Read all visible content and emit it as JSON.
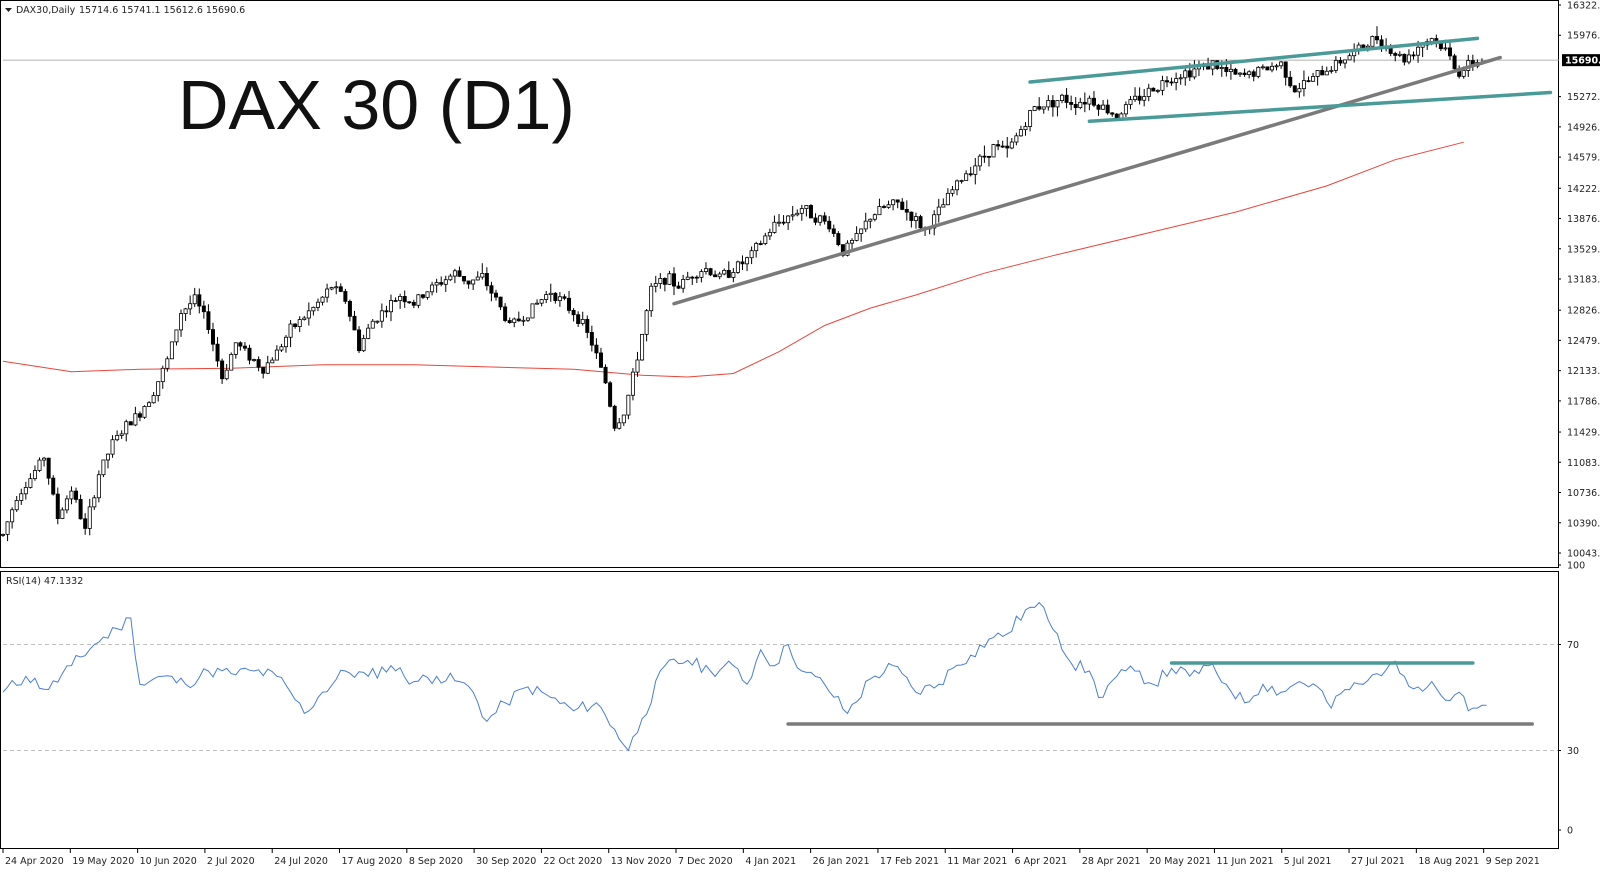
{
  "header": {
    "symbol_line": "DAX30,Daily",
    "ohlc_line": "15714.6 15741.1 15612.6 15690.6",
    "big_title": "DAX 30 (D1)",
    "rsi_label": "RSI(14) 47.1332"
  },
  "chart_data": [
    {
      "type": "candlestick",
      "title": "DAX 30 (D1)",
      "symbol": "DAX30",
      "timeframe": "Daily",
      "last_ohlc": {
        "open": 15714.6,
        "high": 15741.1,
        "low": 15612.6,
        "close": 15690.6
      },
      "current_price": 15690.6,
      "ylim": [
        10043.5,
        16322.5
      ],
      "y_ticks": [
        "16322.5",
        "15976.0",
        "15272.5",
        "14926.0",
        "14579.5",
        "14222.5",
        "13876.0",
        "13529.5",
        "13183.0",
        "12826.0",
        "12479.5",
        "12133.0",
        "11786.5",
        "11429.5",
        "11083.0",
        "10736.5",
        "10390.0",
        "10043.5"
      ],
      "x_ticks": [
        "24 Apr 2020",
        "19 May 2020",
        "10 Jun 2020",
        "2 Jul 2020",
        "24 Jul 2020",
        "17 Aug 2020",
        "8 Sep 2020",
        "30 Sep 2020",
        "22 Oct 2020",
        "13 Nov 2020",
        "7 Dec 2020",
        "4 Jan 2021",
        "26 Jan 2021",
        "17 Feb 2021",
        "11 Mar 2021",
        "6 Apr 2021",
        "28 Apr 2021",
        "20 May 2021",
        "11 Jun 2021",
        "5 Jul 2021",
        "27 Jul 2021",
        "18 Aug 2021",
        "9 Sep 2021"
      ],
      "price_path": [
        [
          0,
          10250
        ],
        [
          3,
          10700
        ],
        [
          6,
          10900
        ],
        [
          9,
          11150
        ],
        [
          12,
          10450
        ],
        [
          15,
          10780
        ],
        [
          18,
          10300
        ],
        [
          21,
          10950
        ],
        [
          24,
          11300
        ],
        [
          27,
          11500
        ],
        [
          30,
          11650
        ],
        [
          33,
          11900
        ],
        [
          36,
          12250
        ],
        [
          39,
          12800
        ],
        [
          42,
          12950
        ],
        [
          45,
          12650
        ],
        [
          48,
          12050
        ],
        [
          51,
          12450
        ],
        [
          54,
          12300
        ],
        [
          57,
          12150
        ],
        [
          60,
          12350
        ],
        [
          63,
          12600
        ],
        [
          66,
          12750
        ],
        [
          69,
          12900
        ],
        [
          72,
          13100
        ],
        [
          75,
          12950
        ],
        [
          78,
          12400
        ],
        [
          81,
          12700
        ],
        [
          84,
          12850
        ],
        [
          87,
          13000
        ],
        [
          90,
          12900
        ],
        [
          93,
          13050
        ],
        [
          96,
          13150
        ],
        [
          99,
          13250
        ],
        [
          102,
          13150
        ],
        [
          105,
          13200
        ],
        [
          108,
          12950
        ],
        [
          111,
          12650
        ],
        [
          114,
          12750
        ],
        [
          117,
          12900
        ],
        [
          120,
          13050
        ],
        [
          123,
          12900
        ],
        [
          126,
          12750
        ],
        [
          129,
          12450
        ],
        [
          132,
          12000
        ],
        [
          134,
          11500
        ],
        [
          136,
          11650
        ],
        [
          138,
          12050
        ],
        [
          140,
          12550
        ],
        [
          142,
          13050
        ],
        [
          145,
          13200
        ],
        [
          148,
          13100
        ],
        [
          151,
          13250
        ],
        [
          154,
          13300
        ],
        [
          157,
          13200
        ],
        [
          160,
          13300
        ],
        [
          163,
          13400
        ],
        [
          166,
          13600
        ],
        [
          169,
          13800
        ],
        [
          172,
          13900
        ],
        [
          175,
          14000
        ],
        [
          178,
          13900
        ],
        [
          181,
          13800
        ],
        [
          184,
          13500
        ],
        [
          187,
          13650
        ],
        [
          190,
          13900
        ],
        [
          193,
          14000
        ],
        [
          196,
          14050
        ],
        [
          199,
          13900
        ],
        [
          202,
          13750
        ],
        [
          205,
          13950
        ],
        [
          208,
          14200
        ],
        [
          211,
          14400
        ],
        [
          214,
          14550
        ],
        [
          217,
          14700
        ],
        [
          220,
          14650
        ],
        [
          223,
          14900
        ],
        [
          226,
          15150
        ],
        [
          229,
          15200
        ],
        [
          232,
          15250
        ],
        [
          235,
          15200
        ],
        [
          238,
          15250
        ],
        [
          241,
          15150
        ],
        [
          244,
          15050
        ],
        [
          247,
          15200
        ],
        [
          250,
          15300
        ],
        [
          253,
          15400
        ],
        [
          256,
          15500
        ],
        [
          259,
          15550
        ],
        [
          262,
          15600
        ],
        [
          265,
          15650
        ],
        [
          268,
          15550
        ],
        [
          271,
          15500
        ],
        [
          274,
          15550
        ],
        [
          277,
          15600
        ],
        [
          280,
          15650
        ],
        [
          283,
          15350
        ],
        [
          286,
          15450
        ],
        [
          289,
          15550
        ],
        [
          292,
          15650
        ],
        [
          295,
          15750
        ],
        [
          298,
          15850
        ],
        [
          301,
          15950
        ],
        [
          304,
          15800
        ],
        [
          307,
          15700
        ],
        [
          310,
          15850
        ],
        [
          313,
          15950
        ],
        [
          316,
          15800
        ],
        [
          319,
          15550
        ],
        [
          322,
          15650
        ],
        [
          324,
          15690.6
        ]
      ],
      "moving_average": {
        "color": "#e8463a",
        "path": [
          [
            0,
            12240
          ],
          [
            15,
            12120
          ],
          [
            30,
            12150
          ],
          [
            50,
            12160
          ],
          [
            70,
            12200
          ],
          [
            90,
            12200
          ],
          [
            110,
            12170
          ],
          [
            125,
            12150
          ],
          [
            140,
            12080
          ],
          [
            150,
            12060
          ],
          [
            160,
            12100
          ],
          [
            170,
            12350
          ],
          [
            180,
            12650
          ],
          [
            190,
            12850
          ],
          [
            200,
            13000
          ],
          [
            215,
            13250
          ],
          [
            230,
            13450
          ],
          [
            250,
            13700
          ],
          [
            270,
            13950
          ],
          [
            290,
            14250
          ],
          [
            305,
            14550
          ],
          [
            320,
            14750
          ]
        ]
      },
      "trendlines": [
        {
          "name": "rising support",
          "color": "#7a7a7a",
          "from": [
            147,
            12900
          ],
          "to": [
            328,
            15720
          ]
        },
        {
          "name": "channel upper",
          "color": "#4a9a98",
          "from": [
            225,
            15440
          ],
          "to": [
            323,
            15940
          ]
        },
        {
          "name": "channel lower",
          "color": "#4a9a98",
          "from": [
            238,
            14990
          ],
          "to": [
            339,
            15320
          ]
        }
      ]
    },
    {
      "type": "line",
      "title": "RSI(14) 47.1332",
      "current_value": 47.1332,
      "ylim": [
        0,
        100
      ],
      "y_ticks": [
        "100",
        "70",
        "30",
        "0"
      ],
      "levels": [
        70,
        30
      ],
      "color": "#4a7ed8",
      "values": [
        [
          0,
          52
        ],
        [
          5,
          58
        ],
        [
          10,
          53
        ],
        [
          15,
          62
        ],
        [
          20,
          70
        ],
        [
          25,
          76
        ],
        [
          28,
          80
        ],
        [
          30,
          55
        ],
        [
          35,
          58
        ],
        [
          40,
          55
        ],
        [
          45,
          60
        ],
        [
          50,
          59
        ],
        [
          55,
          60
        ],
        [
          60,
          58
        ],
        [
          63,
          52
        ],
        [
          66,
          44
        ],
        [
          70,
          52
        ],
        [
          75,
          60
        ],
        [
          80,
          58
        ],
        [
          85,
          62
        ],
        [
          90,
          56
        ],
        [
          95,
          58
        ],
        [
          100,
          56
        ],
        [
          103,
          52
        ],
        [
          106,
          41
        ],
        [
          110,
          48
        ],
        [
          115,
          54
        ],
        [
          120,
          50
        ],
        [
          125,
          45
        ],
        [
          130,
          48
        ],
        [
          134,
          38
        ],
        [
          137,
          30
        ],
        [
          140,
          42
        ],
        [
          145,
          62
        ],
        [
          150,
          64
        ],
        [
          155,
          60
        ],
        [
          160,
          62
        ],
        [
          163,
          55
        ],
        [
          166,
          68
        ],
        [
          169,
          62
        ],
        [
          172,
          70
        ],
        [
          175,
          60
        ],
        [
          180,
          55
        ],
        [
          185,
          44
        ],
        [
          190,
          57
        ],
        [
          195,
          62
        ],
        [
          200,
          52
        ],
        [
          205,
          55
        ],
        [
          208,
          61
        ],
        [
          212,
          66
        ],
        [
          216,
          72
        ],
        [
          220,
          74
        ],
        [
          224,
          83
        ],
        [
          228,
          84
        ],
        [
          231,
          74
        ],
        [
          234,
          63
        ],
        [
          238,
          60
        ],
        [
          240,
          50
        ],
        [
          244,
          58
        ],
        [
          248,
          60
        ],
        [
          252,
          55
        ],
        [
          256,
          61
        ],
        [
          260,
          58
        ],
        [
          264,
          62
        ],
        [
          268,
          55
        ],
        [
          272,
          48
        ],
        [
          276,
          55
        ],
        [
          280,
          52
        ],
        [
          284,
          56
        ],
        [
          288,
          54
        ],
        [
          291,
          46
        ],
        [
          294,
          53
        ],
        [
          298,
          55
        ],
        [
          301,
          59
        ],
        [
          304,
          63
        ],
        [
          307,
          58
        ],
        [
          310,
          54
        ],
        [
          313,
          56
        ],
        [
          316,
          49
        ],
        [
          319,
          52
        ],
        [
          321,
          45
        ],
        [
          323,
          46
        ],
        [
          325,
          47.1
        ]
      ],
      "levels_drawn": [
        {
          "name": "resistance",
          "color": "#4a9a98",
          "from": [
            256,
            63
          ],
          "to": [
            322,
            63
          ]
        },
        {
          "name": "support",
          "color": "#7a7a7a",
          "from": [
            172,
            40
          ],
          "to": [
            335,
            40
          ]
        }
      ]
    }
  ]
}
